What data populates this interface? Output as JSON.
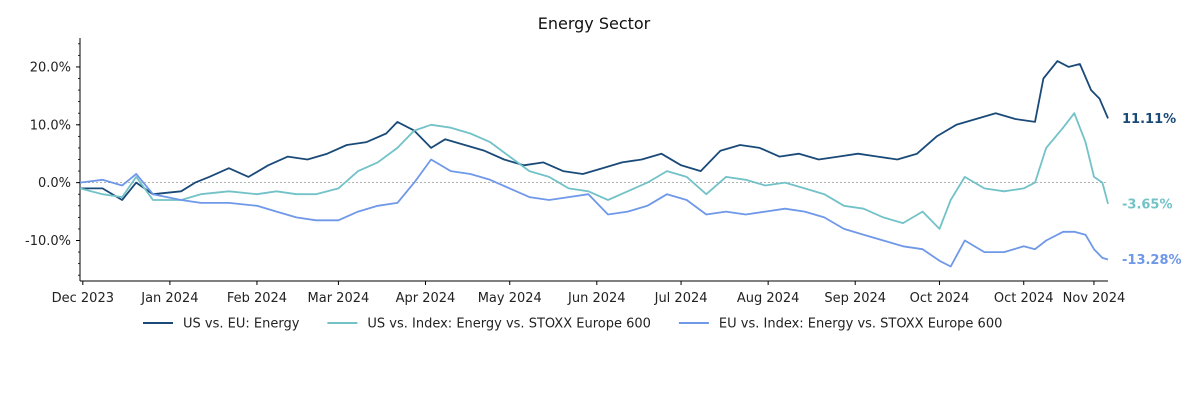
{
  "chart_data": {
    "type": "line",
    "title": "Energy Sector",
    "xlabel": "",
    "ylabel": "",
    "ylim": [
      -17,
      25
    ],
    "yticks": [
      -10,
      0,
      10,
      20
    ],
    "ytick_labels": [
      "-10.0%",
      "0.0%",
      "10.0%",
      "20.0%"
    ],
    "xlim": [
      "2023-11-30",
      "2024-11-30"
    ],
    "xticks": [
      "2023-12-01",
      "2024-01-01",
      "2024-02-01",
      "2024-03-01",
      "2024-04-01",
      "2024-05-01",
      "2024-06-01",
      "2024-07-01",
      "2024-08-01",
      "2024-09-01",
      "2024-10-01",
      "2024-10-31",
      "2024-11-25"
    ],
    "xtick_labels": [
      "Dec 2023",
      "Jan 2024",
      "Feb 2024",
      "Mar 2024",
      "Apr 2024",
      "May 2024",
      "Jun 2024",
      "Jul 2024",
      "Aug 2024",
      "Sep 2024",
      "Oct 2024",
      "Oct 2024",
      "Nov 2024"
    ],
    "zero_line": true,
    "grid": false,
    "legend_position": "bottom",
    "series": [
      {
        "name": "US vs. EU: Energy",
        "color": "#1a4a78",
        "end_label": "11.11%",
        "points": [
          [
            "2023-11-30",
            -1
          ],
          [
            "2023-12-08",
            -1
          ],
          [
            "2023-12-15",
            -3
          ],
          [
            "2023-12-20",
            0
          ],
          [
            "2023-12-26",
            -2
          ],
          [
            "2024-01-05",
            -1.5
          ],
          [
            "2024-01-10",
            0
          ],
          [
            "2024-01-15",
            1
          ],
          [
            "2024-01-22",
            2.5
          ],
          [
            "2024-01-29",
            1
          ],
          [
            "2024-02-05",
            3
          ],
          [
            "2024-02-12",
            4.5
          ],
          [
            "2024-02-19",
            4
          ],
          [
            "2024-02-26",
            5
          ],
          [
            "2024-03-04",
            6.5
          ],
          [
            "2024-03-11",
            7
          ],
          [
            "2024-03-18",
            8.5
          ],
          [
            "2024-03-22",
            10.5
          ],
          [
            "2024-03-28",
            9
          ],
          [
            "2024-04-03",
            6
          ],
          [
            "2024-04-08",
            7.5
          ],
          [
            "2024-04-15",
            6.5
          ],
          [
            "2024-04-22",
            5.5
          ],
          [
            "2024-04-29",
            4
          ],
          [
            "2024-05-06",
            3
          ],
          [
            "2024-05-13",
            3.5
          ],
          [
            "2024-05-20",
            2
          ],
          [
            "2024-05-27",
            1.5
          ],
          [
            "2024-06-03",
            2.5
          ],
          [
            "2024-06-10",
            3.5
          ],
          [
            "2024-06-17",
            4
          ],
          [
            "2024-06-24",
            5
          ],
          [
            "2024-07-01",
            3
          ],
          [
            "2024-07-08",
            2
          ],
          [
            "2024-07-15",
            5.5
          ],
          [
            "2024-07-22",
            6.5
          ],
          [
            "2024-07-29",
            6
          ],
          [
            "2024-08-05",
            4.5
          ],
          [
            "2024-08-12",
            5
          ],
          [
            "2024-08-19",
            4
          ],
          [
            "2024-08-26",
            4.5
          ],
          [
            "2024-09-02",
            5
          ],
          [
            "2024-09-09",
            4.5
          ],
          [
            "2024-09-16",
            4
          ],
          [
            "2024-09-23",
            5
          ],
          [
            "2024-09-30",
            8
          ],
          [
            "2024-10-07",
            10
          ],
          [
            "2024-10-14",
            11
          ],
          [
            "2024-10-21",
            12
          ],
          [
            "2024-10-28",
            11
          ],
          [
            "2024-11-04",
            10.5
          ],
          [
            "2024-11-07",
            18
          ],
          [
            "2024-11-12",
            21
          ],
          [
            "2024-11-16",
            20
          ],
          [
            "2024-11-20",
            20.5
          ],
          [
            "2024-11-24",
            16
          ],
          [
            "2024-11-27",
            14.5
          ],
          [
            "2024-11-30",
            11.11
          ]
        ]
      },
      {
        "name": "US vs. Index: Energy vs. STOXX Europe 600",
        "color": "#72c2c8",
        "end_label": "-3.65%",
        "points": [
          [
            "2023-11-30",
            -1
          ],
          [
            "2023-12-08",
            -2
          ],
          [
            "2023-12-15",
            -2.5
          ],
          [
            "2023-12-20",
            1
          ],
          [
            "2023-12-26",
            -3
          ],
          [
            "2024-01-05",
            -3
          ],
          [
            "2024-01-12",
            -2
          ],
          [
            "2024-01-22",
            -1.5
          ],
          [
            "2024-02-01",
            -2
          ],
          [
            "2024-02-08",
            -1.5
          ],
          [
            "2024-02-15",
            -2
          ],
          [
            "2024-02-22",
            -2
          ],
          [
            "2024-03-01",
            -1
          ],
          [
            "2024-03-08",
            2
          ],
          [
            "2024-03-15",
            3.5
          ],
          [
            "2024-03-22",
            6
          ],
          [
            "2024-03-28",
            9
          ],
          [
            "2024-04-03",
            10
          ],
          [
            "2024-04-10",
            9.5
          ],
          [
            "2024-04-17",
            8.5
          ],
          [
            "2024-04-24",
            7
          ],
          [
            "2024-05-01",
            4.5
          ],
          [
            "2024-05-08",
            2
          ],
          [
            "2024-05-15",
            1
          ],
          [
            "2024-05-22",
            -1
          ],
          [
            "2024-05-29",
            -1.5
          ],
          [
            "2024-06-05",
            -3
          ],
          [
            "2024-06-12",
            -1.5
          ],
          [
            "2024-06-19",
            0
          ],
          [
            "2024-06-26",
            2
          ],
          [
            "2024-07-03",
            1
          ],
          [
            "2024-07-10",
            -2
          ],
          [
            "2024-07-17",
            1
          ],
          [
            "2024-07-24",
            0.5
          ],
          [
            "2024-07-31",
            -0.5
          ],
          [
            "2024-08-07",
            0
          ],
          [
            "2024-08-14",
            -1
          ],
          [
            "2024-08-21",
            -2
          ],
          [
            "2024-08-28",
            -4
          ],
          [
            "2024-09-04",
            -4.5
          ],
          [
            "2024-09-11",
            -6
          ],
          [
            "2024-09-18",
            -7
          ],
          [
            "2024-09-25",
            -5
          ],
          [
            "2024-10-01",
            -8
          ],
          [
            "2024-10-05",
            -3
          ],
          [
            "2024-10-10",
            1
          ],
          [
            "2024-10-17",
            -1
          ],
          [
            "2024-10-24",
            -1.5
          ],
          [
            "2024-10-31",
            -1
          ],
          [
            "2024-11-04",
            0
          ],
          [
            "2024-11-08",
            6
          ],
          [
            "2024-11-14",
            9.5
          ],
          [
            "2024-11-18",
            12
          ],
          [
            "2024-11-22",
            7
          ],
          [
            "2024-11-25",
            1
          ],
          [
            "2024-11-28",
            0
          ],
          [
            "2024-11-30",
            -3.65
          ]
        ]
      },
      {
        "name": "EU vs. Index: Energy vs. STOXX Europe 600",
        "color": "#6f98e8",
        "end_label": "-13.28%",
        "points": [
          [
            "2023-11-30",
            0
          ],
          [
            "2023-12-08",
            0.5
          ],
          [
            "2023-12-15",
            -0.5
          ],
          [
            "2023-12-20",
            1.5
          ],
          [
            "2023-12-26",
            -2
          ],
          [
            "2024-01-05",
            -3
          ],
          [
            "2024-01-12",
            -3.5
          ],
          [
            "2024-01-22",
            -3.5
          ],
          [
            "2024-02-01",
            -4
          ],
          [
            "2024-02-08",
            -5
          ],
          [
            "2024-02-15",
            -6
          ],
          [
            "2024-02-22",
            -6.5
          ],
          [
            "2024-03-01",
            -6.5
          ],
          [
            "2024-03-08",
            -5
          ],
          [
            "2024-03-15",
            -4
          ],
          [
            "2024-03-22",
            -3.5
          ],
          [
            "2024-03-28",
            0
          ],
          [
            "2024-04-03",
            4
          ],
          [
            "2024-04-10",
            2
          ],
          [
            "2024-04-17",
            1.5
          ],
          [
            "2024-04-24",
            0.5
          ],
          [
            "2024-05-01",
            -1
          ],
          [
            "2024-05-08",
            -2.5
          ],
          [
            "2024-05-15",
            -3
          ],
          [
            "2024-05-22",
            -2.5
          ],
          [
            "2024-05-29",
            -2
          ],
          [
            "2024-06-05",
            -5.5
          ],
          [
            "2024-06-12",
            -5
          ],
          [
            "2024-06-19",
            -4
          ],
          [
            "2024-06-26",
            -2
          ],
          [
            "2024-07-03",
            -3
          ],
          [
            "2024-07-10",
            -5.5
          ],
          [
            "2024-07-17",
            -5
          ],
          [
            "2024-07-24",
            -5.5
          ],
          [
            "2024-07-31",
            -5
          ],
          [
            "2024-08-07",
            -4.5
          ],
          [
            "2024-08-14",
            -5
          ],
          [
            "2024-08-21",
            -6
          ],
          [
            "2024-08-28",
            -8
          ],
          [
            "2024-09-04",
            -9
          ],
          [
            "2024-09-11",
            -10
          ],
          [
            "2024-09-18",
            -11
          ],
          [
            "2024-09-25",
            -11.5
          ],
          [
            "2024-10-01",
            -13.5
          ],
          [
            "2024-10-05",
            -14.5
          ],
          [
            "2024-10-10",
            -10
          ],
          [
            "2024-10-17",
            -12
          ],
          [
            "2024-10-24",
            -12
          ],
          [
            "2024-10-31",
            -11
          ],
          [
            "2024-11-04",
            -11.5
          ],
          [
            "2024-11-08",
            -10
          ],
          [
            "2024-11-14",
            -8.5
          ],
          [
            "2024-11-18",
            -8.5
          ],
          [
            "2024-11-22",
            -9
          ],
          [
            "2024-11-25",
            -11.5
          ],
          [
            "2024-11-28",
            -13
          ],
          [
            "2024-11-30",
            -13.28
          ]
        ]
      }
    ]
  }
}
